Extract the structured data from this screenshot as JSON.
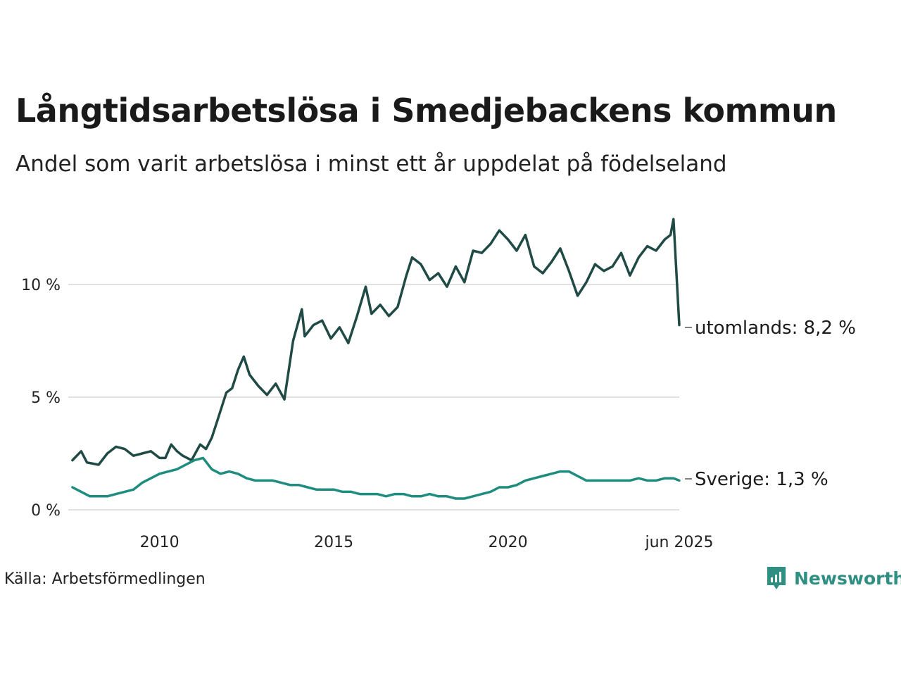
{
  "title": "Långtidsarbetslösa i Smedjebackens kommun",
  "subtitle": "Andel som varit arbetslösa i minst ett år uppdelat på födelseland",
  "source": "Källa: Arbetsförmedlingen",
  "brand": {
    "name": "Newsworthy",
    "icon": "newsworthy-logo-icon"
  },
  "colors": {
    "foreign": "#1f4a45",
    "sweden": "#1e8c7e",
    "grid": "#e1e1e1",
    "brand": "#2f8f82"
  },
  "chart_data": {
    "type": "line",
    "title": "Långtidsarbetslösa i Smedjebackens kommun",
    "subtitle": "Andel som varit arbetslösa i minst ett år uppdelat på födelseland",
    "xlabel": "",
    "ylabel": "",
    "x_ticks": [
      "2010",
      "2015",
      "2020",
      "jun 2025"
    ],
    "y_ticks": [
      "0 %",
      "5 %",
      "10 %"
    ],
    "y_tick_values": [
      0,
      5,
      10
    ],
    "ylim": [
      0,
      13.5
    ],
    "xlim": [
      "2008-01",
      "2025-06"
    ],
    "grid": "horizontal",
    "series": [
      {
        "name": "utomlands",
        "end_label": "utomlands: 8,2 %",
        "color": "#1f4a45",
        "points": [
          [
            "2008-01",
            2.2
          ],
          [
            "2008-04",
            2.6
          ],
          [
            "2008-06",
            2.1
          ],
          [
            "2008-10",
            2.0
          ],
          [
            "2009-01",
            2.5
          ],
          [
            "2009-04",
            2.8
          ],
          [
            "2009-07",
            2.7
          ],
          [
            "2009-10",
            2.4
          ],
          [
            "2010-01",
            2.5
          ],
          [
            "2010-04",
            2.6
          ],
          [
            "2010-07",
            2.3
          ],
          [
            "2010-09",
            2.3
          ],
          [
            "2010-11",
            2.9
          ],
          [
            "2011-01",
            2.6
          ],
          [
            "2011-03",
            2.4
          ],
          [
            "2011-06",
            2.2
          ],
          [
            "2011-09",
            2.9
          ],
          [
            "2011-11",
            2.7
          ],
          [
            "2012-01",
            3.2
          ],
          [
            "2012-03",
            4.0
          ],
          [
            "2012-06",
            5.2
          ],
          [
            "2012-08",
            5.4
          ],
          [
            "2012-10",
            6.2
          ],
          [
            "2012-12",
            6.8
          ],
          [
            "2013-02",
            6.0
          ],
          [
            "2013-05",
            5.5
          ],
          [
            "2013-08",
            5.1
          ],
          [
            "2013-11",
            5.6
          ],
          [
            "2014-02",
            4.9
          ],
          [
            "2014-05",
            7.5
          ],
          [
            "2014-08",
            8.9
          ],
          [
            "2014-09",
            7.7
          ],
          [
            "2014-12",
            8.2
          ],
          [
            "2015-03",
            8.4
          ],
          [
            "2015-06",
            7.6
          ],
          [
            "2015-09",
            8.1
          ],
          [
            "2015-12",
            7.4
          ],
          [
            "2016-03",
            8.6
          ],
          [
            "2016-06",
            9.9
          ],
          [
            "2016-08",
            8.7
          ],
          [
            "2016-11",
            9.1
          ],
          [
            "2017-02",
            8.6
          ],
          [
            "2017-05",
            9.0
          ],
          [
            "2017-08",
            10.4
          ],
          [
            "2017-10",
            11.2
          ],
          [
            "2018-01",
            10.9
          ],
          [
            "2018-04",
            10.2
          ],
          [
            "2018-07",
            10.5
          ],
          [
            "2018-10",
            9.9
          ],
          [
            "2019-01",
            10.8
          ],
          [
            "2019-04",
            10.1
          ],
          [
            "2019-07",
            11.5
          ],
          [
            "2019-10",
            11.4
          ],
          [
            "2020-01",
            11.8
          ],
          [
            "2020-04",
            12.4
          ],
          [
            "2020-07",
            12.0
          ],
          [
            "2020-10",
            11.5
          ],
          [
            "2021-01",
            12.2
          ],
          [
            "2021-04",
            10.8
          ],
          [
            "2021-07",
            10.5
          ],
          [
            "2021-10",
            11.0
          ],
          [
            "2022-01",
            11.6
          ],
          [
            "2022-04",
            10.6
          ],
          [
            "2022-07",
            9.5
          ],
          [
            "2022-10",
            10.1
          ],
          [
            "2023-01",
            10.9
          ],
          [
            "2023-04",
            10.6
          ],
          [
            "2023-07",
            10.8
          ],
          [
            "2023-10",
            11.4
          ],
          [
            "2024-01",
            10.4
          ],
          [
            "2024-04",
            11.2
          ],
          [
            "2024-07",
            11.7
          ],
          [
            "2024-10",
            11.5
          ],
          [
            "2025-01",
            12.0
          ],
          [
            "2025-03",
            12.2
          ],
          [
            "2025-04",
            12.9
          ],
          [
            "2025-06",
            8.2
          ]
        ]
      },
      {
        "name": "Sverige",
        "end_label": "Sverige: 1,3 %",
        "color": "#1e8c7e",
        "points": [
          [
            "2008-01",
            1.0
          ],
          [
            "2008-04",
            0.8
          ],
          [
            "2008-07",
            0.6
          ],
          [
            "2008-10",
            0.6
          ],
          [
            "2009-01",
            0.6
          ],
          [
            "2009-04",
            0.7
          ],
          [
            "2009-07",
            0.8
          ],
          [
            "2009-10",
            0.9
          ],
          [
            "2010-01",
            1.2
          ],
          [
            "2010-04",
            1.4
          ],
          [
            "2010-07",
            1.6
          ],
          [
            "2010-10",
            1.7
          ],
          [
            "2011-01",
            1.8
          ],
          [
            "2011-04",
            2.0
          ],
          [
            "2011-07",
            2.2
          ],
          [
            "2011-10",
            2.3
          ],
          [
            "2012-01",
            1.8
          ],
          [
            "2012-04",
            1.6
          ],
          [
            "2012-07",
            1.7
          ],
          [
            "2012-10",
            1.6
          ],
          [
            "2013-01",
            1.4
          ],
          [
            "2013-04",
            1.3
          ],
          [
            "2013-07",
            1.3
          ],
          [
            "2013-10",
            1.3
          ],
          [
            "2014-01",
            1.2
          ],
          [
            "2014-04",
            1.1
          ],
          [
            "2014-07",
            1.1
          ],
          [
            "2014-10",
            1.0
          ],
          [
            "2015-01",
            0.9
          ],
          [
            "2015-04",
            0.9
          ],
          [
            "2015-07",
            0.9
          ],
          [
            "2015-10",
            0.8
          ],
          [
            "2016-01",
            0.8
          ],
          [
            "2016-04",
            0.7
          ],
          [
            "2016-07",
            0.7
          ],
          [
            "2016-10",
            0.7
          ],
          [
            "2017-01",
            0.6
          ],
          [
            "2017-04",
            0.7
          ],
          [
            "2017-07",
            0.7
          ],
          [
            "2017-10",
            0.6
          ],
          [
            "2018-01",
            0.6
          ],
          [
            "2018-04",
            0.7
          ],
          [
            "2018-07",
            0.6
          ],
          [
            "2018-10",
            0.6
          ],
          [
            "2019-01",
            0.5
          ],
          [
            "2019-04",
            0.5
          ],
          [
            "2019-07",
            0.6
          ],
          [
            "2019-10",
            0.7
          ],
          [
            "2020-01",
            0.8
          ],
          [
            "2020-04",
            1.0
          ],
          [
            "2020-07",
            1.0
          ],
          [
            "2020-10",
            1.1
          ],
          [
            "2021-01",
            1.3
          ],
          [
            "2021-04",
            1.4
          ],
          [
            "2021-07",
            1.5
          ],
          [
            "2021-10",
            1.6
          ],
          [
            "2022-01",
            1.7
          ],
          [
            "2022-04",
            1.7
          ],
          [
            "2022-07",
            1.5
          ],
          [
            "2022-10",
            1.3
          ],
          [
            "2023-01",
            1.3
          ],
          [
            "2023-04",
            1.3
          ],
          [
            "2023-07",
            1.3
          ],
          [
            "2023-10",
            1.3
          ],
          [
            "2024-01",
            1.3
          ],
          [
            "2024-04",
            1.4
          ],
          [
            "2024-07",
            1.3
          ],
          [
            "2024-10",
            1.3
          ],
          [
            "2025-01",
            1.4
          ],
          [
            "2025-04",
            1.4
          ],
          [
            "2025-06",
            1.3
          ]
        ]
      }
    ]
  }
}
